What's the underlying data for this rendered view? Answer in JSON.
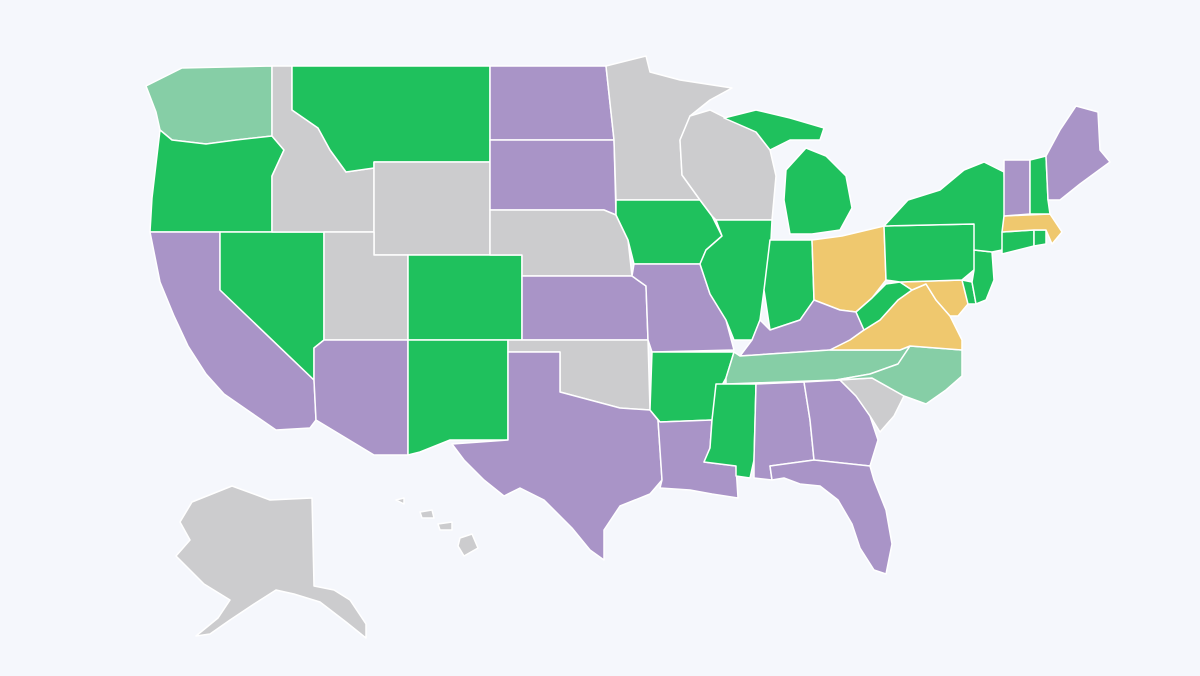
{
  "map": {
    "background": "#f5f7fc",
    "palette": {
      "green": "#1fc15d",
      "light_green": "#86ceA6",
      "purple": "#a994c7",
      "yellow": "#efc86e",
      "gray": "#ccccce"
    },
    "states": [
      {
        "code": "WA",
        "category": "light_green"
      },
      {
        "code": "OR",
        "category": "green"
      },
      {
        "code": "CA",
        "category": "purple"
      },
      {
        "code": "NV",
        "category": "green"
      },
      {
        "code": "ID",
        "category": "gray"
      },
      {
        "code": "MT",
        "category": "green"
      },
      {
        "code": "WY",
        "category": "gray"
      },
      {
        "code": "UT",
        "category": "gray"
      },
      {
        "code": "AZ",
        "category": "purple"
      },
      {
        "code": "CO",
        "category": "green"
      },
      {
        "code": "NM",
        "category": "green"
      },
      {
        "code": "ND",
        "category": "purple"
      },
      {
        "code": "SD",
        "category": "purple"
      },
      {
        "code": "NE",
        "category": "gray"
      },
      {
        "code": "KS",
        "category": "purple"
      },
      {
        "code": "OK",
        "category": "gray"
      },
      {
        "code": "TX",
        "category": "purple"
      },
      {
        "code": "MN",
        "category": "gray"
      },
      {
        "code": "IA",
        "category": "green"
      },
      {
        "code": "MO",
        "category": "purple"
      },
      {
        "code": "AR",
        "category": "green"
      },
      {
        "code": "LA",
        "category": "purple"
      },
      {
        "code": "WI",
        "category": "gray"
      },
      {
        "code": "IL",
        "category": "green"
      },
      {
        "code": "MI",
        "category": "green"
      },
      {
        "code": "IN",
        "category": "green"
      },
      {
        "code": "OH",
        "category": "yellow"
      },
      {
        "code": "KY",
        "category": "purple"
      },
      {
        "code": "TN",
        "category": "light_green"
      },
      {
        "code": "MS",
        "category": "green"
      },
      {
        "code": "AL",
        "category": "purple"
      },
      {
        "code": "GA",
        "category": "purple"
      },
      {
        "code": "FL",
        "category": "purple"
      },
      {
        "code": "SC",
        "category": "gray"
      },
      {
        "code": "NC",
        "category": "light_green"
      },
      {
        "code": "VA",
        "category": "yellow"
      },
      {
        "code": "WV",
        "category": "green"
      },
      {
        "code": "MD",
        "category": "yellow"
      },
      {
        "code": "DE",
        "category": "green"
      },
      {
        "code": "PA",
        "category": "green"
      },
      {
        "code": "NJ",
        "category": "green"
      },
      {
        "code": "NY",
        "category": "green"
      },
      {
        "code": "CT",
        "category": "green"
      },
      {
        "code": "RI",
        "category": "green"
      },
      {
        "code": "MA",
        "category": "yellow"
      },
      {
        "code": "VT",
        "category": "purple"
      },
      {
        "code": "NH",
        "category": "green"
      },
      {
        "code": "ME",
        "category": "purple"
      },
      {
        "code": "AK",
        "category": "gray"
      },
      {
        "code": "HI",
        "category": "gray"
      }
    ]
  }
}
